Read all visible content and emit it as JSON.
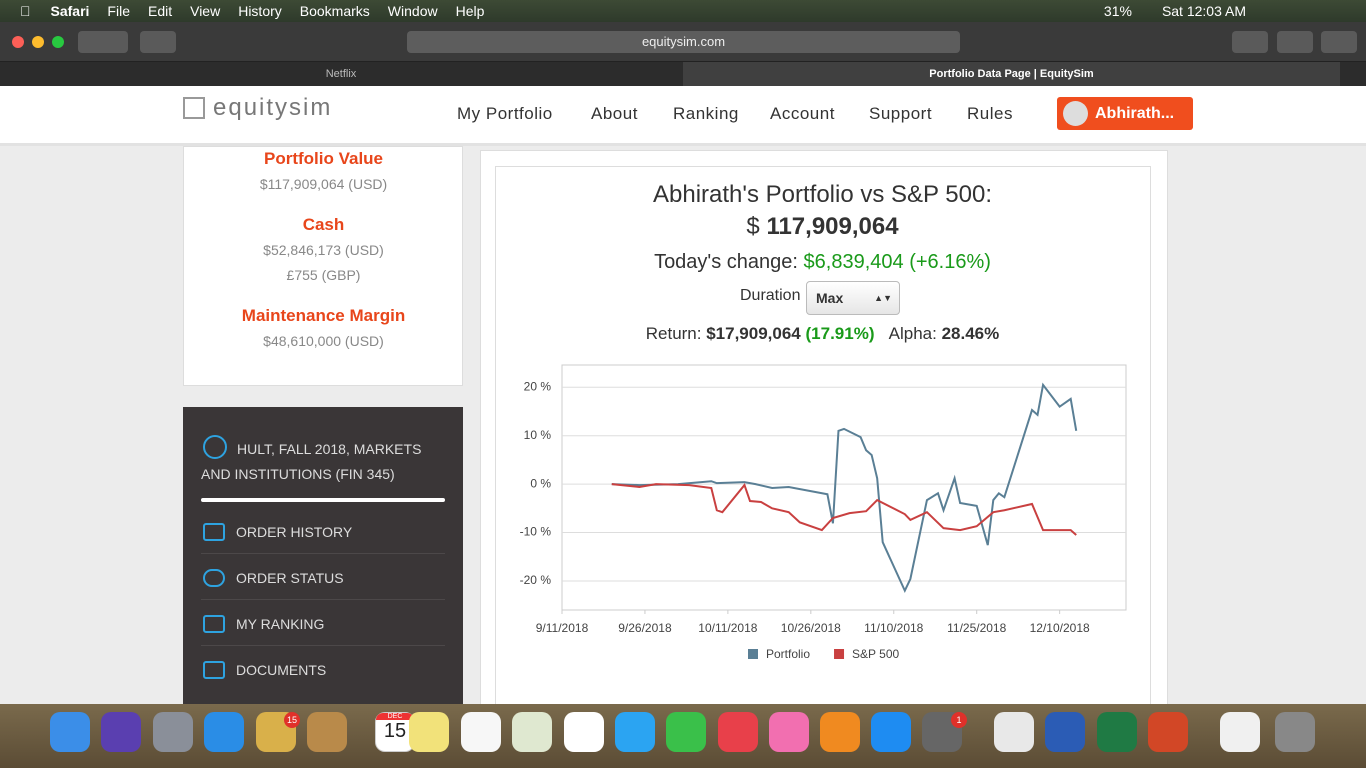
{
  "menu_bar": {
    "app": "Safari",
    "items": [
      "File",
      "Edit",
      "View",
      "History",
      "Bookmarks",
      "Window",
      "Help"
    ],
    "battery": "31%",
    "clock": "Sat 12:03 AM"
  },
  "browser": {
    "address": "equitysim.com",
    "tabs": [
      "Netflix",
      "Portfolio Data Page | EquitySim"
    ]
  },
  "nav": {
    "logo": "equitysim",
    "links": [
      "My Portfolio",
      "About",
      "Ranking",
      "Account",
      "Support",
      "Rules"
    ],
    "user": "Abhirath..."
  },
  "summary": {
    "items": [
      {
        "title": "Portfolio Value",
        "lines": [
          "$117,909,064 (USD)"
        ]
      },
      {
        "title": "Cash",
        "lines": [
          "$52,846,173 (USD)",
          "£755 (GBP)"
        ]
      },
      {
        "title": "Maintenance Margin",
        "lines": [
          "$48,610,000 (USD)"
        ]
      }
    ]
  },
  "sidebar": {
    "course": "HULT, FALL 2018, MARKETS AND INSTITUTIONS (FIN 345)",
    "links": [
      "ORDER HISTORY",
      "ORDER STATUS",
      "MY RANKING",
      "DOCUMENTS"
    ]
  },
  "header": {
    "title": "Abhirath's Portfolio vs S&P 500:",
    "currency": "$",
    "value": "117,909,064",
    "change_label": "Today's change:",
    "change": "$6,839,404 (+6.16%)",
    "duration_label": "Duration",
    "duration": "Max",
    "return_label": "Return:",
    "return_value": "$17,909,064",
    "return_pct": "(17.91%)",
    "alpha_label": "Alpha:",
    "alpha": "28.46%"
  },
  "chart_data": {
    "type": "line",
    "xlim": [
      "2018-09-11",
      "2018-12-22"
    ],
    "xticks": [
      {
        "value": "2018-09-11",
        "label": "9/11/2018"
      },
      {
        "value": "2018-09-26",
        "label": "9/26/2018"
      },
      {
        "value": "2018-10-11",
        "label": "10/11/2018"
      },
      {
        "value": "2018-10-26",
        "label": "10/26/2018"
      },
      {
        "value": "2018-11-10",
        "label": "11/10/2018"
      },
      {
        "value": "2018-11-25",
        "label": "11/25/2018"
      },
      {
        "value": "2018-12-10",
        "label": "12/10/2018"
      }
    ],
    "ylim": [
      -26,
      24.6
    ],
    "yticks": [
      {
        "value": 20,
        "label": "20 %"
      },
      {
        "value": 10,
        "label": "10 %"
      },
      {
        "value": 0,
        "label": "0 %"
      },
      {
        "value": -10,
        "label": "-10 %"
      },
      {
        "value": -20,
        "label": "-20 %"
      }
    ],
    "grid": true,
    "series": [
      {
        "name": "Portfolio",
        "color": "#5a7f95",
        "x": [
          "2018-09-20",
          "2018-09-25",
          "2018-10-02",
          "2018-10-08",
          "2018-10-09",
          "2018-10-14",
          "2018-10-16",
          "2018-10-19",
          "2018-10-22",
          "2018-10-29",
          "2018-10-30",
          "2018-10-31",
          "2018-11-01",
          "2018-11-04",
          "2018-11-05",
          "2018-11-06",
          "2018-11-07",
          "2018-11-08",
          "2018-11-12",
          "2018-11-13",
          "2018-11-16",
          "2018-11-18",
          "2018-11-19",
          "2018-11-21",
          "2018-11-22",
          "2018-11-25",
          "2018-11-27",
          "2018-11-28",
          "2018-11-29",
          "2018-11-30",
          "2018-12-05",
          "2018-12-06",
          "2018-12-07",
          "2018-12-10",
          "2018-12-12",
          "2018-12-13"
        ],
        "values": [
          0,
          -0.2,
          0,
          0.6,
          0.2,
          0.4,
          0,
          -0.8,
          -0.6,
          -2.1,
          -8.1,
          11.0,
          11.4,
          9.7,
          7.0,
          6.0,
          1.2,
          -12.0,
          -22.0,
          -19.6,
          -3.3,
          -1.9,
          -5.4,
          1.2,
          -3.9,
          -4.5,
          -12.6,
          -3.3,
          -1.9,
          -2.7,
          15.3,
          14.3,
          20.5,
          16.0,
          17.6,
          11.0
        ]
      },
      {
        "name": "S&P 500",
        "color": "#c94040",
        "x": [
          "2018-09-20",
          "2018-09-25",
          "2018-09-28",
          "2018-10-04",
          "2018-10-08",
          "2018-10-09",
          "2018-10-10",
          "2018-10-14",
          "2018-10-15",
          "2018-10-17",
          "2018-10-19",
          "2018-10-22",
          "2018-10-24",
          "2018-10-28",
          "2018-10-30",
          "2018-11-02",
          "2018-11-05",
          "2018-11-07",
          "2018-11-12",
          "2018-11-13",
          "2018-11-16",
          "2018-11-19",
          "2018-11-22",
          "2018-11-25",
          "2018-11-28",
          "2018-11-30",
          "2018-12-05",
          "2018-12-07",
          "2018-12-10",
          "2018-12-12",
          "2018-12-13"
        ],
        "values": [
          0,
          -0.6,
          0,
          -0.2,
          -0.8,
          -5.4,
          -5.8,
          -0.2,
          -3.5,
          -3.7,
          -5.0,
          -5.8,
          -7.9,
          -9.5,
          -7.0,
          -6.0,
          -5.6,
          -3.3,
          -6.2,
          -7.4,
          -5.8,
          -9.1,
          -9.5,
          -8.7,
          -5.8,
          -5.4,
          -4.1,
          -9.5,
          -9.5,
          -9.5,
          -10.5
        ]
      }
    ]
  },
  "dock": {
    "calendar_month": "DEC",
    "calendar_day": "15",
    "badges": [
      "15",
      "1"
    ]
  }
}
